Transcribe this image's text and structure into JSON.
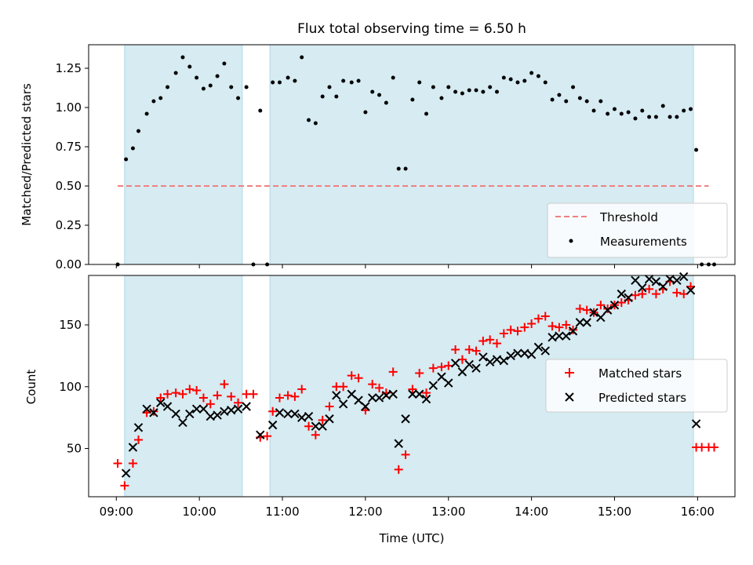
{
  "colors": {
    "shade": "#add8e6",
    "threshold": "#f08080",
    "measurement": "#000000",
    "matched": "#ff0000",
    "predicted": "#000000"
  },
  "chart_data": [
    {
      "type": "scatter",
      "title": "Flux total observing time = 6.50 h",
      "xlabel": "",
      "ylabel": "Matched/Predicted stars",
      "xlim": [
        "08:40",
        "16:27"
      ],
      "ylim": [
        0,
        1.4
      ],
      "yticks": [
        "0.00",
        "0.25",
        "0.50",
        "0.75",
        "1.00",
        "1.25"
      ],
      "grid": false,
      "legend_position": "lower right",
      "shaded_spans": [
        [
          "09:06",
          "10:31"
        ],
        [
          "10:51",
          "15:57"
        ]
      ],
      "threshold": {
        "name": "Threshold",
        "value": 0.5,
        "x": [
          "09:01",
          "16:08"
        ]
      },
      "series": [
        {
          "name": "Measurements",
          "points": [
            [
              "09:01",
              0.0
            ],
            [
              "09:07",
              0.67
            ],
            [
              "09:12",
              0.74
            ],
            [
              "09:16",
              0.85
            ],
            [
              "09:22",
              0.96
            ],
            [
              "09:27",
              1.04
            ],
            [
              "09:32",
              1.06
            ],
            [
              "09:37",
              1.13
            ],
            [
              "09:43",
              1.22
            ],
            [
              "09:48",
              1.32
            ],
            [
              "09:53",
              1.26
            ],
            [
              "09:58",
              1.19
            ],
            [
              "10:03",
              1.12
            ],
            [
              "10:08",
              1.14
            ],
            [
              "10:13",
              1.2
            ],
            [
              "10:18",
              1.28
            ],
            [
              "10:23",
              1.13
            ],
            [
              "10:28",
              1.06
            ],
            [
              "10:34",
              1.13
            ],
            [
              "10:39",
              0.0
            ],
            [
              "10:44",
              0.98
            ],
            [
              "10:49",
              0.0
            ],
            [
              "10:53",
              1.16
            ],
            [
              "10:58",
              1.16
            ],
            [
              "11:04",
              1.19
            ],
            [
              "11:09",
              1.17
            ],
            [
              "11:14",
              1.32
            ],
            [
              "11:19",
              0.92
            ],
            [
              "11:24",
              0.9
            ],
            [
              "11:29",
              1.07
            ],
            [
              "11:34",
              1.13
            ],
            [
              "11:39",
              1.07
            ],
            [
              "11:44",
              1.17
            ],
            [
              "11:50",
              1.16
            ],
            [
              "11:55",
              1.17
            ],
            [
              "12:00",
              0.97
            ],
            [
              "12:05",
              1.1
            ],
            [
              "12:10",
              1.08
            ],
            [
              "12:15",
              1.03
            ],
            [
              "12:20",
              1.19
            ],
            [
              "12:24",
              0.61
            ],
            [
              "12:29",
              0.61
            ],
            [
              "12:34",
              1.05
            ],
            [
              "12:39",
              1.16
            ],
            [
              "12:44",
              0.96
            ],
            [
              "12:49",
              1.13
            ],
            [
              "12:55",
              1.06
            ],
            [
              "13:00",
              1.13
            ],
            [
              "13:05",
              1.1
            ],
            [
              "13:10",
              1.09
            ],
            [
              "13:15",
              1.11
            ],
            [
              "13:20",
              1.11
            ],
            [
              "13:25",
              1.1
            ],
            [
              "13:30",
              1.13
            ],
            [
              "13:35",
              1.1
            ],
            [
              "13:40",
              1.19
            ],
            [
              "13:45",
              1.18
            ],
            [
              "13:50",
              1.16
            ],
            [
              "13:55",
              1.17
            ],
            [
              "14:00",
              1.22
            ],
            [
              "14:05",
              1.2
            ],
            [
              "14:10",
              1.16
            ],
            [
              "14:15",
              1.05
            ],
            [
              "14:20",
              1.08
            ],
            [
              "14:25",
              1.04
            ],
            [
              "14:30",
              1.13
            ],
            [
              "14:35",
              1.06
            ],
            [
              "14:40",
              1.04
            ],
            [
              "14:45",
              0.98
            ],
            [
              "14:50",
              1.04
            ],
            [
              "14:55",
              0.96
            ],
            [
              "15:00",
              0.99
            ],
            [
              "15:05",
              0.96
            ],
            [
              "15:10",
              0.97
            ],
            [
              "15:15",
              0.93
            ],
            [
              "15:20",
              0.98
            ],
            [
              "15:25",
              0.94
            ],
            [
              "15:30",
              0.94
            ],
            [
              "15:35",
              1.01
            ],
            [
              "15:40",
              0.94
            ],
            [
              "15:45",
              0.94
            ],
            [
              "15:50",
              0.98
            ],
            [
              "15:55",
              0.99
            ],
            [
              "15:59",
              0.73
            ],
            [
              "16:03",
              0.0
            ],
            [
              "16:08",
              0.0
            ],
            [
              "16:12",
              0.0
            ]
          ]
        }
      ]
    },
    {
      "type": "scatter",
      "title": "",
      "xlabel": "Time (UTC)",
      "ylabel": "Count",
      "xlim": [
        "08:40",
        "16:27"
      ],
      "ylim": [
        11,
        190
      ],
      "yticks": [
        "50",
        "100",
        "150"
      ],
      "xticks": [
        "09:00",
        "10:00",
        "11:00",
        "12:00",
        "13:00",
        "14:00",
        "15:00",
        "16:00"
      ],
      "grid": false,
      "legend_position": "center right",
      "shaded_spans": [
        [
          "09:06",
          "10:31"
        ],
        [
          "10:51",
          "15:57"
        ]
      ],
      "series": [
        {
          "name": "Matched stars",
          "marker": "plus",
          "points": [
            [
              "09:01",
              38
            ],
            [
              "09:06",
              20
            ],
            [
              "09:12",
              38
            ],
            [
              "09:16",
              57
            ],
            [
              "09:22",
              79
            ],
            [
              "09:27",
              80
            ],
            [
              "09:32",
              91
            ],
            [
              "09:37",
              94
            ],
            [
              "09:43",
              95
            ],
            [
              "09:48",
              94
            ],
            [
              "09:53",
              98
            ],
            [
              "09:58",
              97
            ],
            [
              "10:03",
              91
            ],
            [
              "10:08",
              86
            ],
            [
              "10:13",
              93
            ],
            [
              "10:18",
              102
            ],
            [
              "10:23",
              92
            ],
            [
              "10:28",
              87
            ],
            [
              "10:34",
              94
            ],
            [
              "10:39",
              94
            ],
            [
              "10:44",
              59
            ],
            [
              "10:49",
              60
            ],
            [
              "10:53",
              80
            ],
            [
              "10:58",
              91
            ],
            [
              "11:04",
              93
            ],
            [
              "11:09",
              92
            ],
            [
              "11:14",
              98
            ],
            [
              "11:19",
              68
            ],
            [
              "11:24",
              61
            ],
            [
              "11:29",
              73
            ],
            [
              "11:34",
              84
            ],
            [
              "11:39",
              100
            ],
            [
              "11:44",
              100
            ],
            [
              "11:50",
              109
            ],
            [
              "11:55",
              107
            ],
            [
              "12:00",
              81
            ],
            [
              "12:05",
              102
            ],
            [
              "12:10",
              99
            ],
            [
              "12:15",
              95
            ],
            [
              "12:20",
              112
            ],
            [
              "12:24",
              33
            ],
            [
              "12:29",
              45
            ],
            [
              "12:34",
              98
            ],
            [
              "12:39",
              111
            ],
            [
              "12:44",
              95
            ],
            [
              "12:49",
              115
            ],
            [
              "12:55",
              116
            ],
            [
              "13:00",
              117
            ],
            [
              "13:05",
              130
            ],
            [
              "13:10",
              122
            ],
            [
              "13:15",
              130
            ],
            [
              "13:20",
              129
            ],
            [
              "13:25",
              137
            ],
            [
              "13:30",
              138
            ],
            [
              "13:35",
              135
            ],
            [
              "13:40",
              143
            ],
            [
              "13:45",
              146
            ],
            [
              "13:50",
              145
            ],
            [
              "13:55",
              148
            ],
            [
              "14:00",
              151
            ],
            [
              "14:05",
              155
            ],
            [
              "14:10",
              157
            ],
            [
              "14:15",
              149
            ],
            [
              "14:20",
              148
            ],
            [
              "14:25",
              150
            ],
            [
              "14:30",
              146
            ],
            [
              "14:35",
              163
            ],
            [
              "14:40",
              162
            ],
            [
              "14:45",
              160
            ],
            [
              "14:50",
              166
            ],
            [
              "14:55",
              163
            ],
            [
              "15:00",
              166
            ],
            [
              "15:05",
              168
            ],
            [
              "15:10",
              170
            ],
            [
              "15:15",
              174
            ],
            [
              "15:20",
              175
            ],
            [
              "15:25",
              179
            ],
            [
              "15:30",
              175
            ],
            [
              "15:35",
              179
            ],
            [
              "15:40",
              185
            ],
            [
              "15:45",
              176
            ],
            [
              "15:50",
              175
            ],
            [
              "15:55",
              181
            ],
            [
              "15:59",
              51
            ],
            [
              "16:03",
              51
            ],
            [
              "16:08",
              51
            ],
            [
              "16:12",
              51
            ]
          ]
        },
        {
          "name": "Predicted stars",
          "marker": "x",
          "points": [
            [
              "09:07",
              30
            ],
            [
              "09:12",
              51
            ],
            [
              "09:16",
              67
            ],
            [
              "09:22",
              82
            ],
            [
              "09:27",
              79
            ],
            [
              "09:32",
              87
            ],
            [
              "09:37",
              84
            ],
            [
              "09:43",
              78
            ],
            [
              "09:48",
              71
            ],
            [
              "09:53",
              78
            ],
            [
              "09:58",
              82
            ],
            [
              "10:03",
              82
            ],
            [
              "10:08",
              76
            ],
            [
              "10:13",
              77
            ],
            [
              "10:18",
              80
            ],
            [
              "10:23",
              81
            ],
            [
              "10:28",
              82
            ],
            [
              "10:34",
              84
            ],
            [
              "10:44",
              61
            ],
            [
              "10:53",
              69
            ],
            [
              "10:58",
              79
            ],
            [
              "11:04",
              78
            ],
            [
              "11:09",
              78
            ],
            [
              "11:14",
              75
            ],
            [
              "11:19",
              76
            ],
            [
              "11:24",
              68
            ],
            [
              "11:29",
              68
            ],
            [
              "11:34",
              74
            ],
            [
              "11:39",
              93
            ],
            [
              "11:44",
              86
            ],
            [
              "11:50",
              94
            ],
            [
              "11:55",
              89
            ],
            [
              "12:00",
              84
            ],
            [
              "12:05",
              91
            ],
            [
              "12:10",
              91
            ],
            [
              "12:15",
              93
            ],
            [
              "12:20",
              94
            ],
            [
              "12:24",
              54
            ],
            [
              "12:29",
              74
            ],
            [
              "12:34",
              94
            ],
            [
              "12:39",
              94
            ],
            [
              "12:44",
              90
            ],
            [
              "12:49",
              101
            ],
            [
              "12:55",
              108
            ],
            [
              "13:00",
              103
            ],
            [
              "13:05",
              119
            ],
            [
              "13:10",
              112
            ],
            [
              "13:15",
              118
            ],
            [
              "13:20",
              115
            ],
            [
              "13:25",
              124
            ],
            [
              "13:30",
              120
            ],
            [
              "13:35",
              122
            ],
            [
              "13:40",
              121
            ],
            [
              "13:45",
              125
            ],
            [
              "13:50",
              127
            ],
            [
              "13:55",
              127
            ],
            [
              "14:00",
              126
            ],
            [
              "14:05",
              132
            ],
            [
              "14:10",
              129
            ],
            [
              "14:15",
              140
            ],
            [
              "14:20",
              141
            ],
            [
              "14:25",
              141
            ],
            [
              "14:30",
              145
            ],
            [
              "14:35",
              152
            ],
            [
              "14:40",
              152
            ],
            [
              "14:45",
              160
            ],
            [
              "14:50",
              156
            ],
            [
              "14:55",
              162
            ],
            [
              "15:00",
              166
            ],
            [
              "15:05",
              175
            ],
            [
              "15:10",
              172
            ],
            [
              "15:15",
              186
            ],
            [
              "15:20",
              180
            ],
            [
              "15:25",
              187
            ],
            [
              "15:30",
              185
            ],
            [
              "15:35",
              181
            ],
            [
              "15:40",
              187
            ],
            [
              "15:45",
              186
            ],
            [
              "15:50",
              189
            ],
            [
              "15:55",
              178
            ],
            [
              "15:59",
              70
            ]
          ]
        }
      ]
    }
  ]
}
